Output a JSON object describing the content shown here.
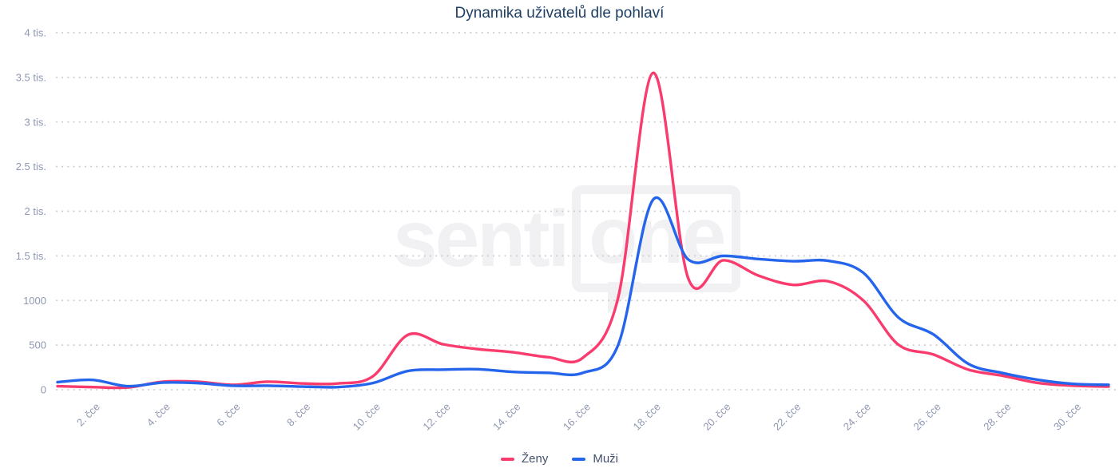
{
  "title": "Dynamika uživatelů dle pohlaví",
  "watermark": {
    "part1": "senti",
    "part2": "one"
  },
  "colors": {
    "zeny": "#f93b6d",
    "muzi": "#2565ec",
    "title_text": "#1e3f66",
    "axis_label": "#8f97b2",
    "gridline": "#c9c9cf",
    "legend_text": "#44516e",
    "watermark": "#f1f1f4"
  },
  "legend": {
    "position": "bottom"
  },
  "chart_data": {
    "type": "line",
    "title": "Dynamika uživatelů dle pohlaví",
    "xlabel": "",
    "ylabel": "",
    "x_days": [
      1,
      2,
      3,
      4,
      5,
      6,
      7,
      8,
      9,
      10,
      11,
      12,
      13,
      14,
      15,
      16,
      17,
      18,
      19,
      20,
      21,
      22,
      23,
      24,
      25,
      26,
      27,
      28,
      29,
      30,
      31
    ],
    "x_tick_days": [
      2,
      4,
      6,
      8,
      10,
      12,
      14,
      16,
      18,
      20,
      22,
      24,
      26,
      28,
      30
    ],
    "x_tick_labels": [
      "2. čce",
      "4. čce",
      "6. čce",
      "8. čce",
      "10. čce",
      "12. čce",
      "14. čce",
      "16. čce",
      "18. čce",
      "20. čce",
      "22. čce",
      "24. čce",
      "26. čce",
      "28. čce",
      "30. čce"
    ],
    "series": [
      {
        "name": "Ženy",
        "color": "#f93b6d",
        "values": [
          40,
          30,
          25,
          90,
          90,
          55,
          90,
          70,
          70,
          150,
          615,
          510,
          455,
          420,
          365,
          360,
          1030,
          3550,
          1250,
          1450,
          1280,
          1175,
          1215,
          1000,
          505,
          395,
          225,
          155,
          75,
          45,
          35
        ]
      },
      {
        "name": "Muži",
        "color": "#2565ec",
        "values": [
          85,
          110,
          40,
          80,
          75,
          45,
          45,
          35,
          30,
          75,
          210,
          225,
          230,
          200,
          190,
          190,
          500,
          2130,
          1460,
          1500,
          1465,
          1440,
          1445,
          1310,
          810,
          620,
          290,
          185,
          110,
          65,
          55
        ]
      }
    ],
    "y_ticks": [
      {
        "value": 0,
        "label": "0"
      },
      {
        "value": 500,
        "label": "500"
      },
      {
        "value": 1000,
        "label": "1000"
      },
      {
        "value": 1500,
        "label": "1.5 tis."
      },
      {
        "value": 2000,
        "label": "2 tis."
      },
      {
        "value": 2500,
        "label": "2.5 tis."
      },
      {
        "value": 3000,
        "label": "3 tis."
      },
      {
        "value": 3500,
        "label": "3.5 tis."
      },
      {
        "value": 4000,
        "label": "4 tis."
      }
    ],
    "ylim": [
      0,
      4000
    ],
    "grid": "horizontal-dotted",
    "legend_position": "bottom"
  }
}
